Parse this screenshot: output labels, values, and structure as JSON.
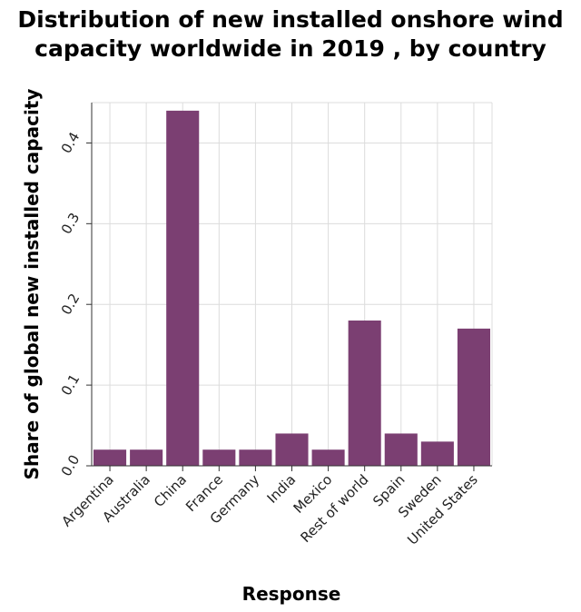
{
  "chart_data": {
    "type": "bar",
    "title_lines": [
      "Distribution of new installed onshore wind",
      "capacity worldwide in 2019 , by country"
    ],
    "xlabel": "Response",
    "ylabel": "Share of global new installed capacity",
    "categories": [
      "Argentina",
      "Australia",
      "China",
      "France",
      "Germany",
      "India",
      "Mexico",
      "Rest of world",
      "Spain",
      "Sweden",
      "United States"
    ],
    "values": [
      0.02,
      0.02,
      0.44,
      0.02,
      0.02,
      0.04,
      0.02,
      0.18,
      0.04,
      0.03,
      0.17
    ],
    "yticks": [
      0.0,
      0.1,
      0.2,
      0.3,
      0.4
    ],
    "ytick_labels": [
      "0.0",
      "0.1",
      "0.2",
      "0.3",
      "0.4"
    ],
    "ylim": [
      0,
      0.45
    ],
    "grid": true,
    "bar_color": "#7b3f72"
  }
}
